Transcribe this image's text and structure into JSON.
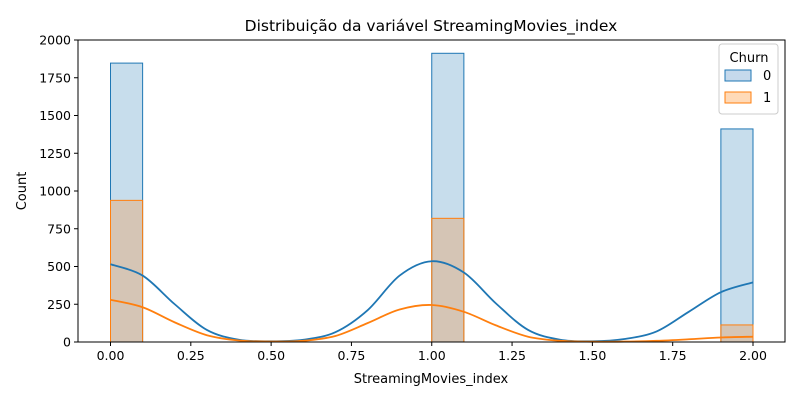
{
  "chart_data": {
    "type": "bar",
    "title": "Distribuição da variável StreamingMovies_index",
    "xlabel": "StreamingMovies_index",
    "ylabel": "Count",
    "xlim": [
      -0.1,
      2.1
    ],
    "ylim": [
      0,
      2000
    ],
    "xticks": [
      "0.00",
      "0.25",
      "0.50",
      "0.75",
      "1.00",
      "1.25",
      "1.50",
      "1.75",
      "2.00"
    ],
    "yticks": [
      "0",
      "250",
      "500",
      "750",
      "1000",
      "1250",
      "1500",
      "1750",
      "2000"
    ],
    "bins": [
      [
        0.0,
        0.1
      ],
      [
        1.0,
        1.1
      ],
      [
        1.9,
        2.0
      ]
    ],
    "legend": {
      "title": "Churn",
      "placement": "top-right"
    },
    "series": [
      {
        "name": "0",
        "color": "#1f77b4",
        "fill": "#c5d9ec",
        "values": [
          1847,
          1912,
          1411
        ]
      },
      {
        "name": "1",
        "color": "#ff7f0e",
        "fill": "#ffdab8",
        "values": [
          938,
          819,
          113
        ]
      }
    ],
    "kde": [
      {
        "series": "0",
        "x": [
          0.0,
          0.1,
          0.2,
          0.3,
          0.4,
          0.5,
          0.6,
          0.7,
          0.8,
          0.9,
          1.0,
          1.1,
          1.2,
          1.3,
          1.4,
          1.5,
          1.6,
          1.7,
          1.8,
          1.9,
          2.0
        ],
        "y": [
          515,
          440,
          250,
          80,
          15,
          5,
          15,
          65,
          210,
          440,
          535,
          460,
          255,
          80,
          15,
          5,
          20,
          70,
          200,
          330,
          395
        ]
      },
      {
        "series": "1",
        "x": [
          0.0,
          0.1,
          0.2,
          0.3,
          0.4,
          0.5,
          0.6,
          0.7,
          0.8,
          0.9,
          1.0,
          1.1,
          1.2,
          1.3,
          1.4,
          1.5,
          1.6,
          1.7,
          1.8,
          1.9,
          2.0
        ],
        "y": [
          280,
          230,
          130,
          45,
          10,
          3,
          8,
          40,
          125,
          215,
          245,
          200,
          110,
          35,
          8,
          2,
          3,
          8,
          18,
          30,
          35
        ]
      }
    ]
  }
}
